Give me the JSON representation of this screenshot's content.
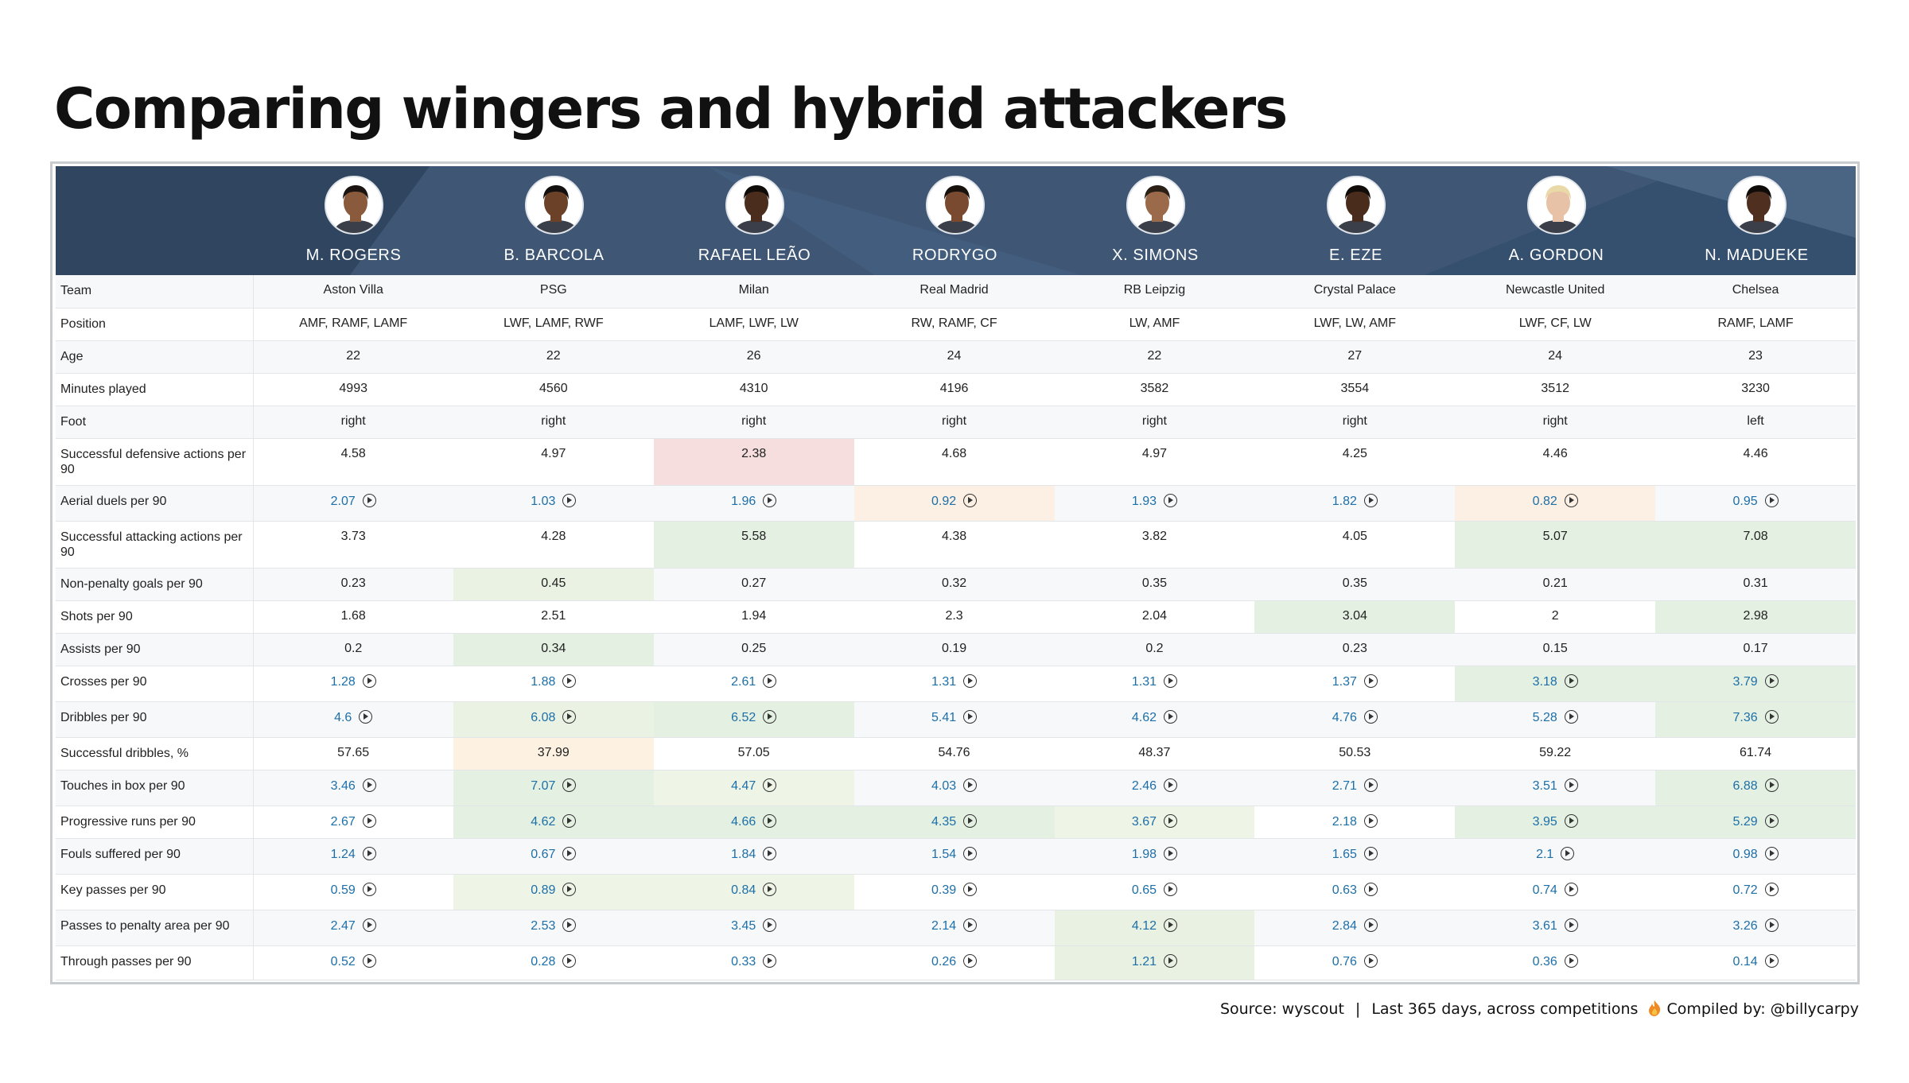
{
  "title": "Comparing wingers and hybrid attackers",
  "players": [
    {
      "name": "M. ROGERS",
      "skin": "#8a5a3c",
      "hair": "#1b1410"
    },
    {
      "name": "B. BARCOLA",
      "skin": "#6b4128",
      "hair": "#141010"
    },
    {
      "name": "RAFAEL LEÃO",
      "skin": "#4a2d1d",
      "hair": "#0f0c0a"
    },
    {
      "name": "RODRYGO",
      "skin": "#7a4a30",
      "hair": "#18110c"
    },
    {
      "name": "X. SIMONS",
      "skin": "#9a6a4a",
      "hair": "#2a2016"
    },
    {
      "name": "E. EZE",
      "skin": "#4a2c1c",
      "hair": "#120d0a"
    },
    {
      "name": "A. GORDON",
      "skin": "#e8c2a6",
      "hair": "#e9d9a8"
    },
    {
      "name": "N. MADUEKE",
      "skin": "#4f2f20",
      "hair": "#100c0a"
    }
  ],
  "rows": [
    {
      "label": "Team",
      "link": false,
      "height": 41,
      "values": [
        "Aston Villa",
        "PSG",
        "Milan",
        "Real Madrid",
        "RB Leipzig",
        "Crystal Palace",
        "Newcastle United",
        "Chelsea"
      ]
    },
    {
      "label": "Position",
      "link": false,
      "height": 41,
      "values": [
        "AMF, RAMF, LAMF",
        "LWF, LAMF, RWF",
        "LAMF, LWF, LW",
        "RW, RAMF, CF",
        "LW, AMF",
        "LWF, LW, AMF",
        "LWF, CF, LW",
        "RAMF, LAMF"
      ]
    },
    {
      "label": "Age",
      "link": false,
      "height": 41,
      "values": [
        "22",
        "22",
        "26",
        "24",
        "22",
        "27",
        "24",
        "23"
      ]
    },
    {
      "label": "Minutes played",
      "link": false,
      "height": 41,
      "values": [
        "4993",
        "4560",
        "4310",
        "4196",
        "3582",
        "3554",
        "3512",
        "3230"
      ]
    },
    {
      "label": "Foot",
      "link": false,
      "height": 41,
      "values": [
        "right",
        "right",
        "right",
        "right",
        "right",
        "right",
        "right",
        "left"
      ]
    },
    {
      "label": "Successful defensive actions per 90",
      "link": false,
      "height": 59,
      "values": [
        "4.58",
        "4.97",
        "2.38",
        "4.68",
        "4.97",
        "4.25",
        "4.46",
        "4.46"
      ]
    },
    {
      "label": "Aerial duels per 90",
      "link": true,
      "height": 45,
      "values": [
        "2.07",
        "1.03",
        "1.96",
        "0.92",
        "1.93",
        "1.82",
        "0.82",
        "0.95"
      ]
    },
    {
      "label": "Successful attacking actions per 90",
      "link": false,
      "height": 59,
      "values": [
        "3.73",
        "4.28",
        "5.58",
        "4.38",
        "3.82",
        "4.05",
        "5.07",
        "7.08"
      ]
    },
    {
      "label": "Non-penalty goals per 90",
      "link": false,
      "height": 41,
      "values": [
        "0.23",
        "0.45",
        "0.27",
        "0.32",
        "0.35",
        "0.35",
        "0.21",
        "0.31"
      ]
    },
    {
      "label": "Shots per 90",
      "link": false,
      "height": 41,
      "values": [
        "1.68",
        "2.51",
        "1.94",
        "2.3",
        "2.04",
        "3.04",
        "2",
        "2.98"
      ]
    },
    {
      "label": "Assists per 90",
      "link": false,
      "height": 41,
      "values": [
        "0.2",
        "0.34",
        "0.25",
        "0.19",
        "0.2",
        "0.23",
        "0.15",
        "0.17"
      ]
    },
    {
      "label": "Crosses per 90",
      "link": true,
      "height": 45,
      "values": [
        "1.28",
        "1.88",
        "2.61",
        "1.31",
        "1.31",
        "1.37",
        "3.18",
        "3.79"
      ]
    },
    {
      "label": "Dribbles per 90",
      "link": true,
      "height": 45,
      "values": [
        "4.6",
        "6.08",
        "6.52",
        "5.41",
        "4.62",
        "4.76",
        "5.28",
        "7.36"
      ]
    },
    {
      "label": "Successful dribbles, %",
      "link": false,
      "height": 41,
      "values": [
        "57.65",
        "37.99",
        "57.05",
        "54.76",
        "48.37",
        "50.53",
        "59.22",
        "61.74"
      ]
    },
    {
      "label": "Touches in box per 90",
      "link": true,
      "height": 45,
      "values": [
        "3.46",
        "7.07",
        "4.47",
        "4.03",
        "2.46",
        "2.71",
        "3.51",
        "6.88"
      ]
    },
    {
      "label": "Progressive runs per 90",
      "link": true,
      "height": 41,
      "values": [
        "2.67",
        "4.62",
        "4.66",
        "4.35",
        "3.67",
        "2.18",
        "3.95",
        "5.29"
      ]
    },
    {
      "label": "Fouls suffered per 90",
      "link": true,
      "height": 45,
      "values": [
        "1.24",
        "0.67",
        "1.84",
        "1.54",
        "1.98",
        "1.65",
        "2.1",
        "0.98"
      ]
    },
    {
      "label": "Key passes per 90",
      "link": true,
      "height": 45,
      "values": [
        "0.59",
        "0.89",
        "0.84",
        "0.39",
        "0.65",
        "0.63",
        "0.74",
        "0.72"
      ]
    },
    {
      "label": "Passes to penalty area per 90",
      "link": true,
      "height": 45,
      "values": [
        "2.47",
        "2.53",
        "3.45",
        "2.14",
        "4.12",
        "2.84",
        "3.61",
        "3.26"
      ]
    },
    {
      "label": "Through passes per 90",
      "link": true,
      "height": 43,
      "values": [
        "0.52",
        "0.28",
        "0.33",
        "0.26",
        "1.21",
        "0.76",
        "0.36",
        "0.14"
      ]
    }
  ],
  "highlights": [
    {
      "row": 5,
      "col": 2,
      "color": "#f6dedf"
    },
    {
      "row": 6,
      "col": 3,
      "color": "#fbf0e3"
    },
    {
      "row": 6,
      "col": 6,
      "color": "#fbf0e3"
    },
    {
      "row": 7,
      "col": 2,
      "color": "#e4f1e2"
    },
    {
      "row": 7,
      "col": 6,
      "color": "#e4f1e2"
    },
    {
      "row": 7,
      "col": 7,
      "color": "#e4f1e2"
    },
    {
      "row": 8,
      "col": 1,
      "color": "#eaf2e4"
    },
    {
      "row": 9,
      "col": 5,
      "color": "#e4f1e2"
    },
    {
      "row": 9,
      "col": 7,
      "color": "#e4f1e2"
    },
    {
      "row": 10,
      "col": 1,
      "color": "#e4f1e2"
    },
    {
      "row": 11,
      "col": 6,
      "color": "#e4f1e2"
    },
    {
      "row": 11,
      "col": 7,
      "color": "#e4f1e2"
    },
    {
      "row": 12,
      "col": 1,
      "color": "#eaf2e4"
    },
    {
      "row": 12,
      "col": 2,
      "color": "#e4f1e2"
    },
    {
      "row": 12,
      "col": 7,
      "color": "#e4f1e2"
    },
    {
      "row": 13,
      "col": 1,
      "color": "#fdf2e2"
    },
    {
      "row": 14,
      "col": 1,
      "color": "#e4f1e2"
    },
    {
      "row": 14,
      "col": 2,
      "color": "#eef4e6"
    },
    {
      "row": 14,
      "col": 7,
      "color": "#e4f1e2"
    },
    {
      "row": 15,
      "col": 1,
      "color": "#e4f1e2"
    },
    {
      "row": 15,
      "col": 2,
      "color": "#e4f1e2"
    },
    {
      "row": 15,
      "col": 3,
      "color": "#e4f1e2"
    },
    {
      "row": 15,
      "col": 4,
      "color": "#eef4e6"
    },
    {
      "row": 15,
      "col": 6,
      "color": "#e4f1e2"
    },
    {
      "row": 15,
      "col": 7,
      "color": "#e4f1e2"
    },
    {
      "row": 17,
      "col": 1,
      "color": "#eef4e6"
    },
    {
      "row": 17,
      "col": 2,
      "color": "#eef4e6"
    },
    {
      "row": 18,
      "col": 4,
      "color": "#e8f1e2"
    },
    {
      "row": 19,
      "col": 4,
      "color": "#e8f1e2"
    }
  ],
  "footer": {
    "source": "Source: wyscout",
    "divider": "|",
    "period": "Last 365 days, across competitions",
    "compiled": "Compiled by: @billycarpy"
  },
  "colors": {
    "header_bg": "#3f5775",
    "link": "#1d6fa8"
  }
}
